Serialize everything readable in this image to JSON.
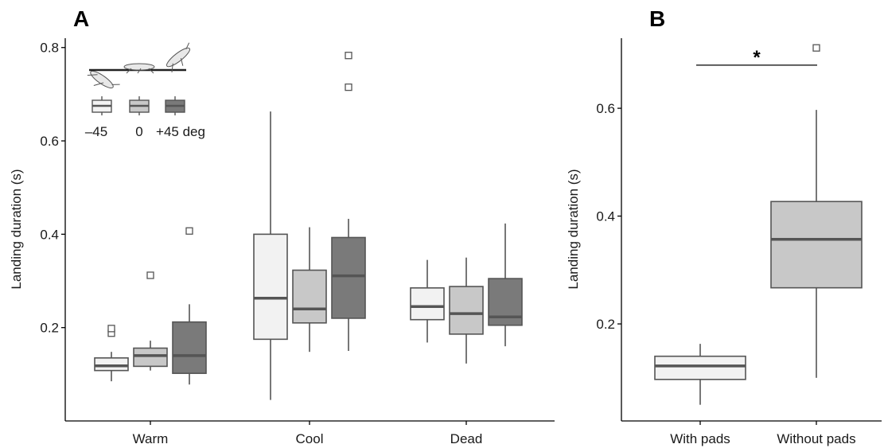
{
  "chart_data": [
    {
      "panel_label": "A",
      "type": "box",
      "ylabel": "Landing duration (s)",
      "ylim": [
        0.0,
        0.82
      ],
      "yticks": [
        0.2,
        0.4,
        0.6,
        0.8
      ],
      "ytick_labels": [
        "0.2",
        "0.4",
        "0.6",
        "0.8"
      ],
      "categories": [
        "Warm",
        "Cool",
        "Dead"
      ],
      "grid": false,
      "legend": {
        "position": "top-left",
        "entries": [
          {
            "label": "–45",
            "fill": "#f2f2f2"
          },
          {
            "label": "0",
            "fill": "#c8c8c8"
          },
          {
            "label": "+45 deg",
            "fill": "#7a7a7a"
          }
        ]
      },
      "series": [
        {
          "name": "–45",
          "boxes": [
            {
              "category": "Warm",
              "whisker_low": 0.085,
              "q1": 0.108,
              "median": 0.118,
              "q3": 0.135,
              "whisker_high": 0.148,
              "outliers": [
                0.188,
                0.198
              ]
            },
            {
              "category": "Cool",
              "whisker_low": 0.045,
              "q1": 0.175,
              "median": 0.263,
              "q3": 0.4,
              "whisker_high": 0.663,
              "outliers": []
            },
            {
              "category": "Dead",
              "whisker_low": 0.168,
              "q1": 0.217,
              "median": 0.245,
              "q3": 0.285,
              "whisker_high": 0.345,
              "outliers": []
            }
          ]
        },
        {
          "name": "0",
          "boxes": [
            {
              "category": "Warm",
              "whisker_low": 0.108,
              "q1": 0.117,
              "median": 0.14,
              "q3": 0.156,
              "whisker_high": 0.172,
              "outliers": [
                0.312
              ]
            },
            {
              "category": "Cool",
              "whisker_low": 0.148,
              "q1": 0.21,
              "median": 0.24,
              "q3": 0.323,
              "whisker_high": 0.415,
              "outliers": []
            },
            {
              "category": "Dead",
              "whisker_low": 0.123,
              "q1": 0.186,
              "median": 0.23,
              "q3": 0.288,
              "whisker_high": 0.35,
              "outliers": []
            }
          ]
        },
        {
          "name": "+45 deg",
          "boxes": [
            {
              "category": "Warm",
              "whisker_low": 0.078,
              "q1": 0.102,
              "median": 0.14,
              "q3": 0.212,
              "whisker_high": 0.25,
              "outliers": [
                0.407
              ]
            },
            {
              "category": "Cool",
              "whisker_low": 0.15,
              "q1": 0.22,
              "median": 0.311,
              "q3": 0.393,
              "whisker_high": 0.433,
              "outliers": [
                0.715,
                0.783
              ]
            },
            {
              "category": "Dead",
              "whisker_low": 0.16,
              "q1": 0.205,
              "median": 0.223,
              "q3": 0.305,
              "whisker_high": 0.423,
              "outliers": []
            }
          ]
        }
      ],
      "colors": {
        "–45": "#f2f2f2",
        "0": "#c8c8c8",
        "+45 deg": "#7a7a7a"
      }
    },
    {
      "panel_label": "B",
      "type": "box",
      "ylabel": "Landing duration (s)",
      "ylim": [
        0.02,
        0.73
      ],
      "yticks": [
        0.2,
        0.4,
        0.6
      ],
      "ytick_labels": [
        "0.2",
        "0.4",
        "0.6"
      ],
      "categories": [
        "With pads",
        "Without pads"
      ],
      "grid": false,
      "boxes": [
        {
          "category": "With pads",
          "fill": "#f2f2f2",
          "whisker_low": 0.05,
          "q1": 0.097,
          "median": 0.122,
          "q3": 0.14,
          "whisker_high": 0.163,
          "outliers": []
        },
        {
          "category": "Without pads",
          "fill": "#c8c8c8",
          "whisker_low": 0.1,
          "q1": 0.267,
          "median": 0.357,
          "q3": 0.427,
          "whisker_high": 0.597,
          "outliers": [
            0.712
          ]
        }
      ],
      "significance": {
        "label": "*",
        "y": 0.68,
        "between": [
          "With pads",
          "Without pads"
        ]
      }
    }
  ]
}
